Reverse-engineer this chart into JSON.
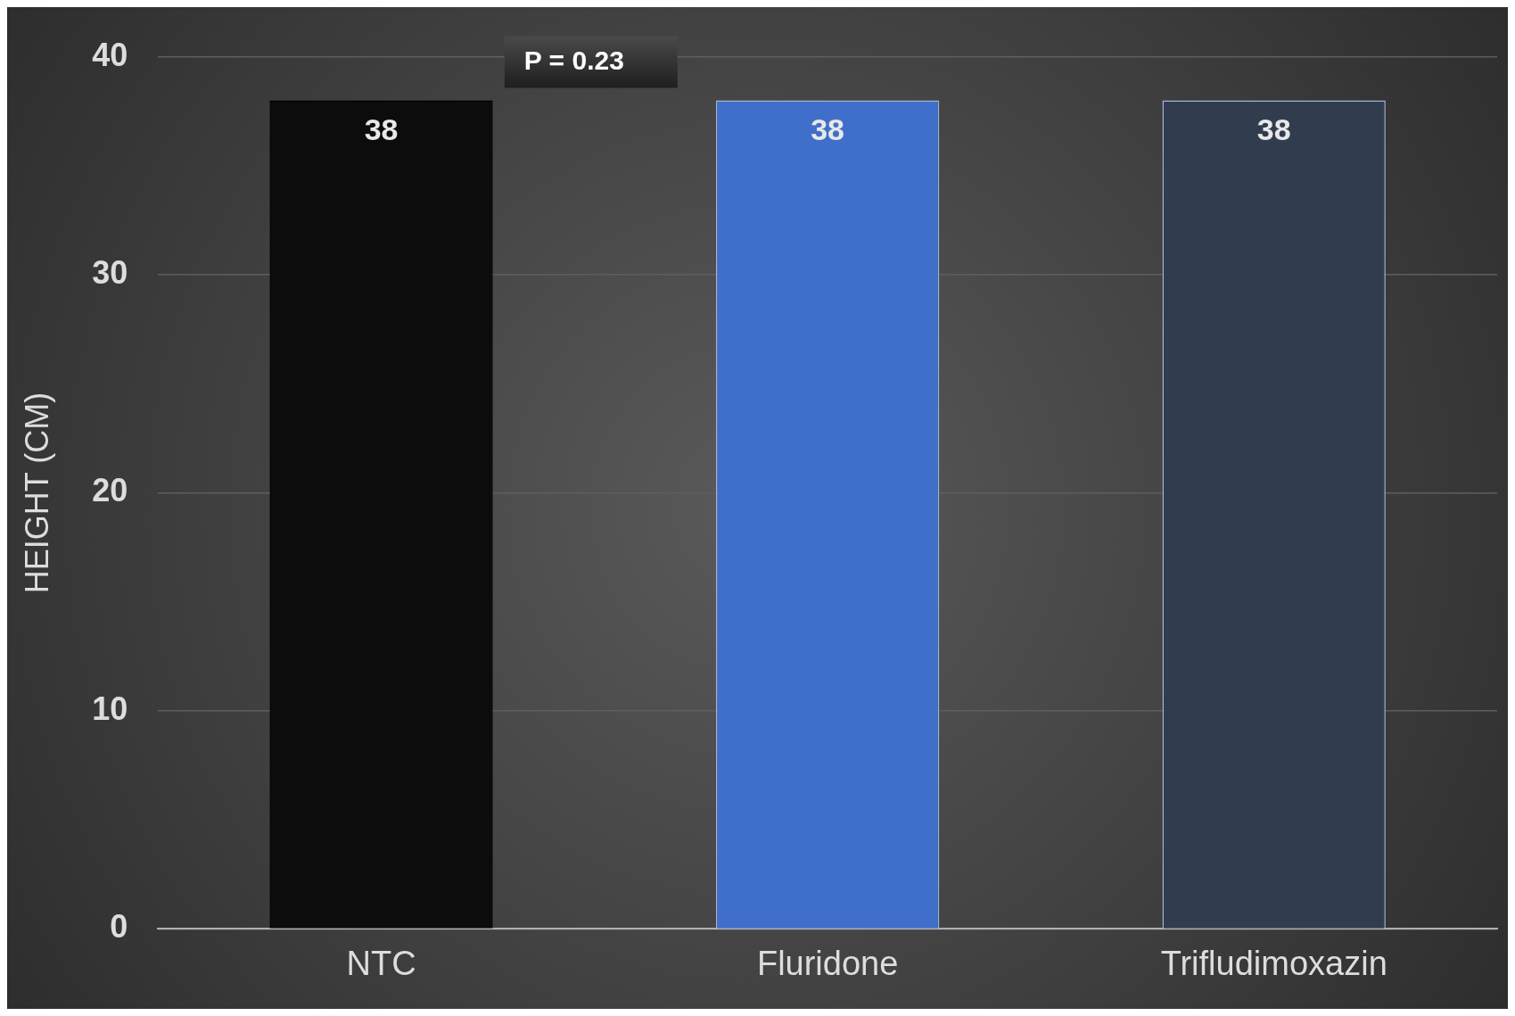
{
  "chart_data": {
    "type": "bar",
    "ylabel": "HEIGHT (CM)",
    "categories": [
      "NTC",
      "Fluridone",
      "Trifludimoxazin"
    ],
    "values": [
      38,
      38,
      38
    ],
    "colors": [
      "#0c0c0c",
      "#3f6fca",
      "#323c4f"
    ],
    "ylim": [
      0,
      40
    ],
    "yticks": [
      0,
      10,
      20,
      30,
      40
    ],
    "grid": "y",
    "legend": false,
    "data_labels": true,
    "annotations": [
      "P = 0.23"
    ]
  }
}
